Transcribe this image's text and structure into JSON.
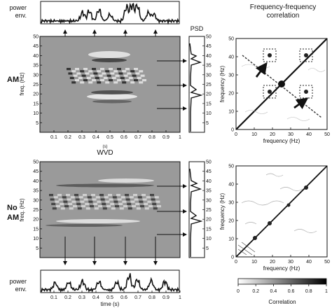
{
  "labels": {
    "power_env_line1": "power",
    "power_env_line2": "env.",
    "psd": "PSD",
    "ff_title_line1": "Frequency-frequency",
    "ff_title_line2": "correlation",
    "am": "AM",
    "no_am_line1": "No",
    "no_am_line2": "AM",
    "wvd": "WVD",
    "freq_axis": "freq. (Hz)",
    "frequency_axis": "frequency (Hz)",
    "time_axis_top": "(s)",
    "time_axis_bottom": "time (s)",
    "correlation": "Correlation"
  },
  "axes": {
    "freq_ticks": [
      "5",
      "10",
      "15",
      "20",
      "25",
      "30",
      "35",
      "40",
      "45",
      "50"
    ],
    "time_ticks": [
      "0.1",
      "0.2",
      "0.3",
      "0.4",
      "0.5",
      "0.6",
      "0.7",
      "0.8",
      "0.9",
      "1"
    ],
    "ff_ticks": [
      "0",
      "10",
      "20",
      "30",
      "40",
      "50"
    ],
    "colorbar_ticks": [
      "0",
      "0.2",
      "0.4",
      "0.6",
      "0.8",
      "1"
    ]
  },
  "colors": {
    "map_gray": "#9a9a9a",
    "ink": "#111111"
  }
}
